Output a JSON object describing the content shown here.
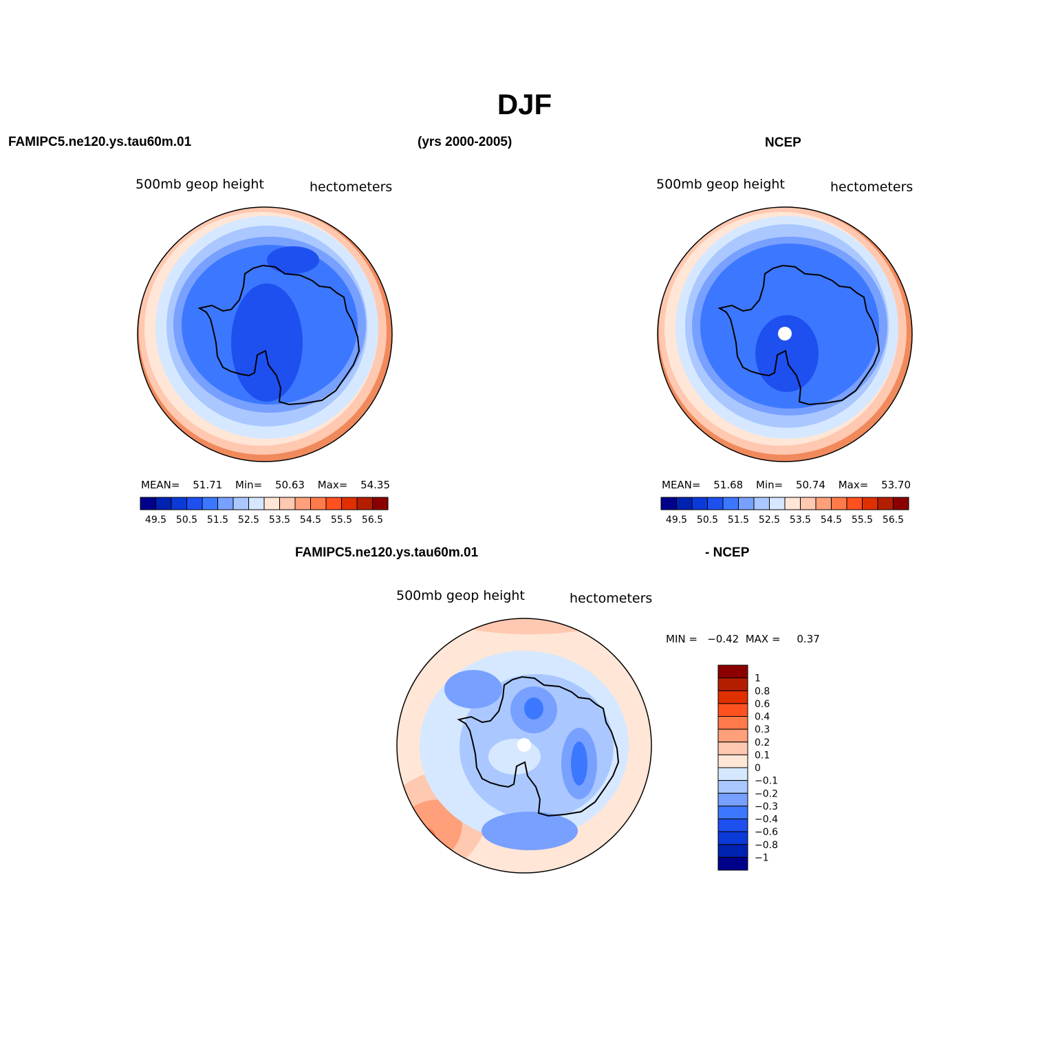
{
  "main_title": "DJF",
  "header": {
    "left": "FAMIPC5.ne120.ys.tau60m.01",
    "center": "(yrs 2000-2005)",
    "right": "NCEP"
  },
  "panels": [
    {
      "field": "500mb  geop height",
      "units": "hectometers",
      "stats": {
        "mean_label": "MEAN=",
        "mean": "51.71",
        "min_label": "Min=",
        "min": "50.63",
        "max_label": "Max=",
        "max": "54.35"
      }
    },
    {
      "field": "500mb  geop height",
      "units": "hectometers",
      "stats": {
        "mean_label": "MEAN=",
        "mean": "51.68",
        "min_label": "Min=",
        "min": "50.74",
        "max_label": "Max=",
        "max": "53.70"
      }
    },
    {
      "field": "500mb  geop height",
      "units": "hectometers",
      "stats_text": "MIN =   −0.42  MAX =     0.37"
    }
  ],
  "diff_header": {
    "left": "FAMIPC5.ne120.ys.tau60m.01",
    "right": "- NCEP"
  },
  "colorbars": {
    "absolute": {
      "colors": [
        "#00008b",
        "#0022b0",
        "#0a3ad8",
        "#1e50f0",
        "#3c78ff",
        "#78a0ff",
        "#aac8ff",
        "#d6e8ff",
        "#ffe6d6",
        "#ffc8b0",
        "#ffa07a",
        "#ff7a4a",
        "#ff5020",
        "#e03000",
        "#b41e00",
        "#8b0000"
      ],
      "labels": [
        "49.5",
        "50.5",
        "51.5",
        "52.5",
        "53.5",
        "54.5",
        "55.5",
        "56.5"
      ]
    },
    "difference": {
      "colors": [
        "#8b0000",
        "#b41e00",
        "#e03000",
        "#ff5020",
        "#ff7a4a",
        "#ffa07a",
        "#ffc8b0",
        "#ffe6d6",
        "#d6e8ff",
        "#aac8ff",
        "#78a0ff",
        "#3c78ff",
        "#1e50f0",
        "#0a3ad8",
        "#0022b0",
        "#00008b"
      ],
      "labels": [
        "1",
        "0.8",
        "0.6",
        "0.4",
        "0.3",
        "0.2",
        "0.1",
        "0",
        "−0.1",
        "−0.2",
        "−0.3",
        "−0.4",
        "−0.6",
        "−0.8",
        "−1"
      ]
    }
  }
}
